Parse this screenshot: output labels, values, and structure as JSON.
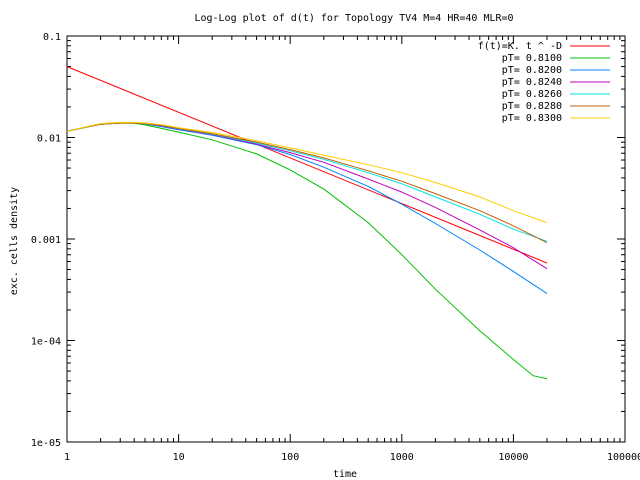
{
  "chart_data": {
    "type": "line",
    "title": "Log-Log plot of d(t) for Topology TV4 M=4 HR=40 MLR=0",
    "xlabel": "time",
    "ylabel": "exc. cells density",
    "xscale": "log",
    "yscale": "log",
    "xlim": [
      1,
      100000
    ],
    "ylim": [
      1e-05,
      0.1
    ],
    "grid": false,
    "legend_position": "top-right",
    "x_ticks": [
      {
        "value": 1,
        "label": "1"
      },
      {
        "value": 10,
        "label": "10"
      },
      {
        "value": 100,
        "label": "100"
      },
      {
        "value": 1000,
        "label": "1000"
      },
      {
        "value": 10000,
        "label": "10000"
      },
      {
        "value": 100000,
        "label": "100000"
      }
    ],
    "y_ticks": [
      {
        "value": 0.1,
        "label": "0.1"
      },
      {
        "value": 0.01,
        "label": "0.01"
      },
      {
        "value": 0.001,
        "label": "0.001"
      },
      {
        "value": 0.0001,
        "label": "1e-04"
      },
      {
        "value": 1e-05,
        "label": "1e-05"
      }
    ],
    "series": [
      {
        "name": "f(t)=K. t ^ -D",
        "color": "#ff0000",
        "x": [
          1,
          20000
        ],
        "y": [
          0.05,
          0.00058
        ]
      },
      {
        "name": "pT= 0.8100",
        "color": "#00c000",
        "x": [
          1,
          1.5,
          2,
          3,
          4,
          5,
          7,
          10,
          20,
          50,
          100,
          200,
          500,
          1000,
          2000,
          5000,
          10000,
          15000,
          20000
        ],
        "y": [
          0.0115,
          0.0127,
          0.0135,
          0.0139,
          0.0138,
          0.0133,
          0.0123,
          0.0113,
          0.0095,
          0.0069,
          0.0048,
          0.0031,
          0.00145,
          0.0007,
          0.00032,
          0.000125,
          6.5e-05,
          4.5e-05,
          4.2e-05
        ]
      },
      {
        "name": "pT= 0.8200",
        "color": "#0080ff",
        "x": [
          1,
          1.5,
          2,
          3,
          4,
          5,
          7,
          10,
          20,
          50,
          100,
          200,
          500,
          1000,
          2000,
          5000,
          10000,
          20000
        ],
        "y": [
          0.0115,
          0.0127,
          0.0135,
          0.0139,
          0.0139,
          0.0136,
          0.0128,
          0.0119,
          0.0105,
          0.0085,
          0.0068,
          0.0051,
          0.0033,
          0.0022,
          0.00142,
          0.00078,
          0.00048,
          0.00029
        ]
      },
      {
        "name": "pT= 0.8240",
        "color": "#c000c0",
        "x": [
          1,
          1.5,
          2,
          3,
          4,
          5,
          7,
          10,
          20,
          50,
          100,
          200,
          500,
          1000,
          2000,
          5000,
          10000,
          20000
        ],
        "y": [
          0.0115,
          0.0127,
          0.0135,
          0.0139,
          0.0139,
          0.0137,
          0.0131,
          0.0121,
          0.0107,
          0.0086,
          0.0071,
          0.0057,
          0.0039,
          0.0029,
          0.00205,
          0.00123,
          0.00082,
          0.00051
        ]
      },
      {
        "name": "pT= 0.8260",
        "color": "#00e0e0",
        "x": [
          1,
          1.5,
          2,
          3,
          4,
          5,
          7,
          10,
          20,
          50,
          100,
          200,
          500,
          1000,
          2000,
          5000,
          10000,
          20000
        ],
        "y": [
          0.0115,
          0.0127,
          0.0135,
          0.0139,
          0.0139,
          0.0137,
          0.0132,
          0.0122,
          0.0108,
          0.0088,
          0.0074,
          0.0061,
          0.0045,
          0.0035,
          0.0026,
          0.00175,
          0.00125,
          0.00095
        ]
      },
      {
        "name": "pT= 0.8280",
        "color": "#c06000",
        "x": [
          1,
          1.5,
          2,
          3,
          4,
          5,
          7,
          10,
          20,
          50,
          100,
          200,
          500,
          1000,
          2000,
          5000,
          10000,
          20000
        ],
        "y": [
          0.0115,
          0.0127,
          0.0135,
          0.0139,
          0.0139,
          0.0137,
          0.0132,
          0.0123,
          0.0109,
          0.009,
          0.0076,
          0.0063,
          0.0047,
          0.0037,
          0.0028,
          0.0019,
          0.00135,
          0.00092
        ]
      },
      {
        "name": "pT= 0.8300",
        "color": "#ffcc00",
        "x": [
          1,
          1.5,
          2,
          3,
          4,
          5,
          7,
          10,
          20,
          50,
          100,
          200,
          500,
          1000,
          2000,
          5000,
          10000,
          20000
        ],
        "y": [
          0.0115,
          0.0128,
          0.0137,
          0.0141,
          0.0141,
          0.0139,
          0.0134,
          0.0125,
          0.0112,
          0.0093,
          0.0079,
          0.0067,
          0.0054,
          0.0045,
          0.0036,
          0.0026,
          0.0019,
          0.00145
        ]
      }
    ]
  }
}
